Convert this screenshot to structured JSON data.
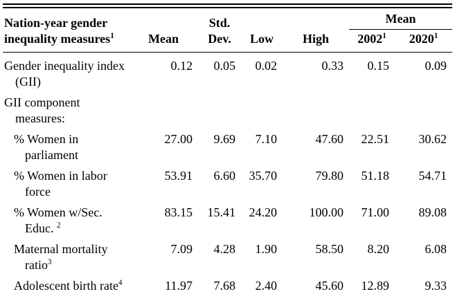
{
  "table": {
    "header": {
      "label": "Nation-year gender inequality measures",
      "label_sup": "1",
      "col_mean": "Mean",
      "col_std": "Std. Dev.",
      "col_low": "Low",
      "col_high": "High",
      "group_label": "Mean",
      "group_col_2002": "2002",
      "group_col_2002_sup": "1",
      "group_col_2020": "2020",
      "group_col_2020_sup": "1"
    },
    "rows": [
      {
        "label": "Gender inequality index (GII)",
        "sup": "",
        "values": [
          "0.12",
          "0.05",
          "0.02",
          "0.33",
          "0.15",
          "0.09"
        ]
      },
      {
        "label": "GII component measures:",
        "sup": "",
        "values": [
          "",
          "",
          "",
          "",
          "",
          ""
        ]
      },
      {
        "label": "% Women in parliament",
        "sup": "",
        "values": [
          "27.00",
          "9.69",
          "7.10",
          "47.60",
          "22.51",
          "30.62"
        ]
      },
      {
        "label": "% Women in labor force",
        "sup": "",
        "values": [
          "53.91",
          "6.60",
          "35.70",
          "79.80",
          "51.18",
          "54.71"
        ]
      },
      {
        "label": "% Women w/Sec. Educ. ",
        "sup": "2",
        "values": [
          "83.15",
          "15.41",
          "24.20",
          "100.00",
          "71.00",
          "89.08"
        ]
      },
      {
        "label": "Maternal mortality ratio",
        "sup": "3",
        "values": [
          "7.09",
          "4.28",
          "1.90",
          "58.50",
          "8.20",
          "6.08"
        ]
      },
      {
        "label": "Adolescent birth rate",
        "sup": "4",
        "values": [
          "11.97",
          "7.68",
          "2.40",
          "45.60",
          "12.89",
          "9.33"
        ]
      }
    ]
  }
}
